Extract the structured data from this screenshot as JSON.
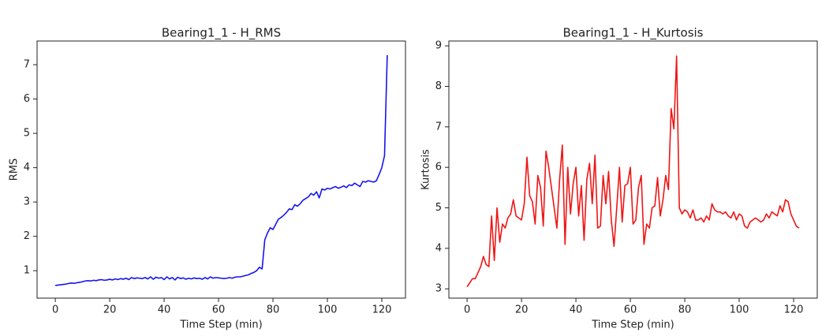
{
  "chart_data": [
    {
      "type": "line",
      "title": "Bearing1_1 - H_RMS",
      "xlabel": "Time Step (min)",
      "ylabel": "RMS",
      "x": [
        0,
        1,
        2,
        3,
        4,
        5,
        6,
        7,
        8,
        9,
        10,
        11,
        12,
        13,
        14,
        15,
        16,
        17,
        18,
        19,
        20,
        21,
        22,
        23,
        24,
        25,
        26,
        27,
        28,
        29,
        30,
        31,
        32,
        33,
        34,
        35,
        36,
        37,
        38,
        39,
        40,
        41,
        42,
        43,
        44,
        45,
        46,
        47,
        48,
        49,
        50,
        51,
        52,
        53,
        54,
        55,
        56,
        57,
        58,
        59,
        60,
        61,
        62,
        63,
        64,
        65,
        66,
        67,
        68,
        69,
        70,
        71,
        72,
        73,
        74,
        75,
        76,
        77,
        78,
        79,
        80,
        81,
        82,
        83,
        84,
        85,
        86,
        87,
        88,
        89,
        90,
        91,
        92,
        93,
        94,
        95,
        96,
        97,
        98,
        99,
        100,
        101,
        102,
        103,
        104,
        105,
        106,
        107,
        108,
        109,
        110,
        111,
        112,
        113,
        114,
        115,
        116,
        117,
        118,
        119,
        120,
        121,
        122
      ],
      "series": [
        {
          "name": "RMS",
          "color": "#1515f0",
          "values": [
            0.57,
            0.58,
            0.59,
            0.6,
            0.61,
            0.63,
            0.64,
            0.63,
            0.65,
            0.66,
            0.68,
            0.7,
            0.71,
            0.7,
            0.72,
            0.71,
            0.73,
            0.74,
            0.72,
            0.73,
            0.75,
            0.73,
            0.76,
            0.74,
            0.77,
            0.75,
            0.78,
            0.74,
            0.8,
            0.77,
            0.79,
            0.78,
            0.77,
            0.8,
            0.76,
            0.82,
            0.75,
            0.81,
            0.78,
            0.8,
            0.74,
            0.82,
            0.76,
            0.8,
            0.73,
            0.81,
            0.77,
            0.79,
            0.75,
            0.78,
            0.76,
            0.79,
            0.77,
            0.78,
            0.75,
            0.8,
            0.76,
            0.82,
            0.78,
            0.8,
            0.79,
            0.78,
            0.77,
            0.78,
            0.8,
            0.78,
            0.81,
            0.82,
            0.82,
            0.84,
            0.86,
            0.88,
            0.92,
            0.95,
            1.0,
            1.1,
            1.05,
            1.9,
            2.1,
            2.25,
            2.2,
            2.35,
            2.5,
            2.55,
            2.62,
            2.7,
            2.8,
            2.78,
            2.92,
            2.88,
            2.95,
            3.05,
            3.1,
            3.15,
            3.25,
            3.2,
            3.3,
            3.12,
            3.38,
            3.35,
            3.4,
            3.38,
            3.42,
            3.45,
            3.4,
            3.43,
            3.47,
            3.42,
            3.5,
            3.48,
            3.55,
            3.5,
            3.45,
            3.6,
            3.58,
            3.62,
            3.6,
            3.58,
            3.62,
            3.8,
            4.0,
            4.35,
            7.28
          ]
        }
      ],
      "xlim": [
        -6.7,
        128.7
      ],
      "xticks": [
        0,
        20,
        40,
        60,
        80,
        100,
        120
      ],
      "ylim": [
        0.2,
        7.69
      ],
      "yticks": [
        1,
        2,
        3,
        4,
        5,
        6,
        7
      ]
    },
    {
      "type": "line",
      "title": "Bearing1_1 - H_Kurtosis",
      "xlabel": "Time Step (min)",
      "ylabel": "Kurtosis",
      "x": [
        0,
        1,
        2,
        3,
        4,
        5,
        6,
        7,
        8,
        9,
        10,
        11,
        12,
        13,
        14,
        15,
        16,
        17,
        18,
        19,
        20,
        21,
        22,
        23,
        24,
        25,
        26,
        27,
        28,
        29,
        30,
        31,
        32,
        33,
        34,
        35,
        36,
        37,
        38,
        39,
        40,
        41,
        42,
        43,
        44,
        45,
        46,
        47,
        48,
        49,
        50,
        51,
        52,
        53,
        54,
        55,
        56,
        57,
        58,
        59,
        60,
        61,
        62,
        63,
        64,
        65,
        66,
        67,
        68,
        69,
        70,
        71,
        72,
        73,
        74,
        75,
        76,
        77,
        78,
        79,
        80,
        81,
        82,
        83,
        84,
        85,
        86,
        87,
        88,
        89,
        90,
        91,
        92,
        93,
        94,
        95,
        96,
        97,
        98,
        99,
        100,
        101,
        102,
        103,
        104,
        105,
        106,
        107,
        108,
        109,
        110,
        111,
        112,
        113,
        114,
        115,
        116,
        117,
        118,
        119,
        120,
        121,
        122
      ],
      "series": [
        {
          "name": "Kurtosis",
          "color": "#f01515",
          "values": [
            3.05,
            3.15,
            3.25,
            3.25,
            3.4,
            3.55,
            3.8,
            3.6,
            3.55,
            4.8,
            3.7,
            5.0,
            4.15,
            4.6,
            4.5,
            4.75,
            4.85,
            5.2,
            4.8,
            4.75,
            4.7,
            5.1,
            6.25,
            5.3,
            5.15,
            4.6,
            5.8,
            5.5,
            4.55,
            6.4,
            6.0,
            5.5,
            5.0,
            4.5,
            5.7,
            6.55,
            4.1,
            6.0,
            4.85,
            5.6,
            6.0,
            4.8,
            5.55,
            4.2,
            5.7,
            6.1,
            5.1,
            6.3,
            4.5,
            4.55,
            5.8,
            5.1,
            5.9,
            4.7,
            4.05,
            5.0,
            6.0,
            4.65,
            5.55,
            5.6,
            6.0,
            4.6,
            4.7,
            5.5,
            5.8,
            4.1,
            4.6,
            4.5,
            5.0,
            5.05,
            5.75,
            4.8,
            5.2,
            5.8,
            5.45,
            7.45,
            6.95,
            8.75,
            5.0,
            4.85,
            4.95,
            4.9,
            4.75,
            4.95,
            4.7,
            4.7,
            4.75,
            4.65,
            4.8,
            4.7,
            5.1,
            4.95,
            4.9,
            4.9,
            4.85,
            4.9,
            4.8,
            4.75,
            4.9,
            4.7,
            4.85,
            4.8,
            4.55,
            4.5,
            4.65,
            4.7,
            4.75,
            4.7,
            4.65,
            4.7,
            4.85,
            4.75,
            4.9,
            4.85,
            4.8,
            5.05,
            4.9,
            5.2,
            5.15,
            4.85,
            4.7,
            4.55,
            4.5
          ]
        }
      ],
      "xlim": [
        -6.7,
        128.7
      ],
      "xticks": [
        0,
        20,
        40,
        60,
        80,
        100,
        120
      ],
      "ylim": [
        2.77,
        9.12
      ],
      "yticks": [
        3,
        4,
        5,
        6,
        7,
        8,
        9
      ]
    }
  ]
}
